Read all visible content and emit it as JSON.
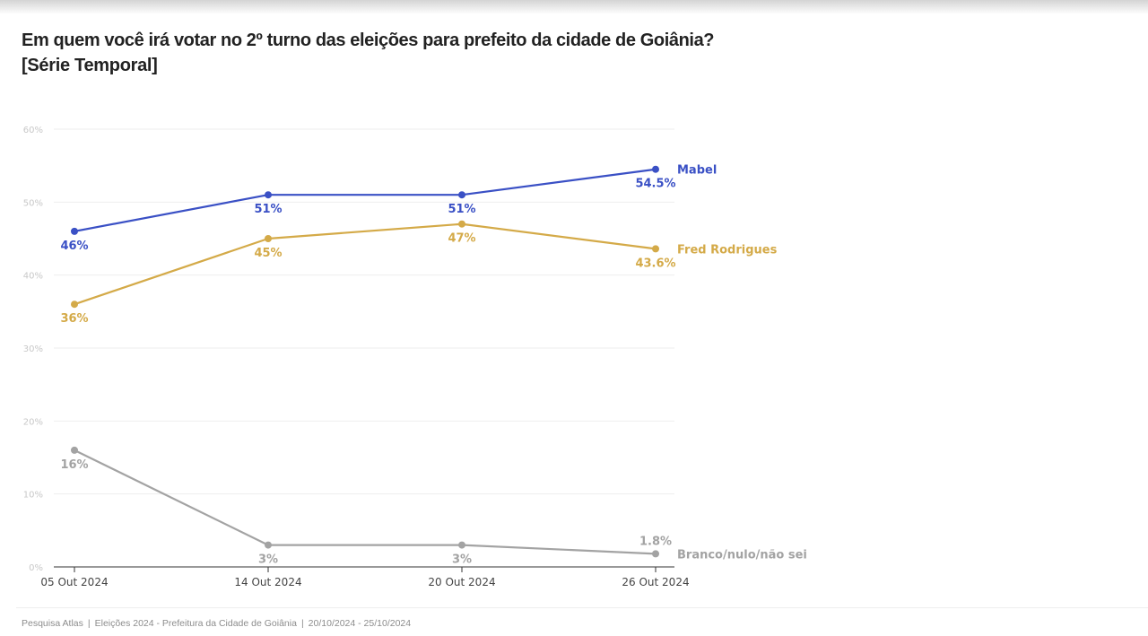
{
  "header": {
    "title": "Em quem você irá votar no 2º turno das eleições para prefeito da cidade de Goiânia?",
    "subtitle": "[Série Temporal]"
  },
  "footer": {
    "parts": [
      "Pesquisa Atlas",
      "Eleições 2024 - Prefeitura da Cidade de Goiânia",
      "20/10/2024 - 25/10/2024"
    ],
    "separator": "|"
  },
  "chart_data": {
    "type": "line",
    "title": "Em quem você irá votar no 2º turno das eleições para prefeito da cidade de Goiânia?",
    "subtitle": "[Série Temporal]",
    "xlabel": "",
    "ylabel": "",
    "x": [
      "05 Out 2024",
      "14 Out 2024",
      "20 Out 2024",
      "26 Out 2024"
    ],
    "ylim": [
      0,
      60
    ],
    "yticks": [
      0,
      10,
      20,
      30,
      40,
      50,
      60
    ],
    "ytick_labels": [
      "0%",
      "10%",
      "20%",
      "30%",
      "40%",
      "50%",
      "60%"
    ],
    "grid": true,
    "legend": "direct labels at right end of lines",
    "series": [
      {
        "name": "Mabel",
        "color": "#3a50c5",
        "values": [
          46,
          51,
          51,
          54.5
        ],
        "labels": [
          "46%",
          "51%",
          "51%",
          "54.5%"
        ],
        "label_pos": [
          "below",
          "below",
          "below",
          "below"
        ]
      },
      {
        "name": "Fred Rodrigues",
        "color": "#d4aa48",
        "values": [
          36,
          45,
          47,
          43.6
        ],
        "labels": [
          "36%",
          "45%",
          "47%",
          "43.6%"
        ],
        "label_pos": [
          "below",
          "below",
          "below",
          "below"
        ]
      },
      {
        "name": "Branco/nulo/não sei",
        "color": "#a3a3a3",
        "values": [
          16,
          3,
          3,
          1.8
        ],
        "labels": [
          "16%",
          "3%",
          "3%",
          "1.8%"
        ],
        "label_pos": [
          "below",
          "below",
          "below",
          "above"
        ]
      }
    ]
  }
}
